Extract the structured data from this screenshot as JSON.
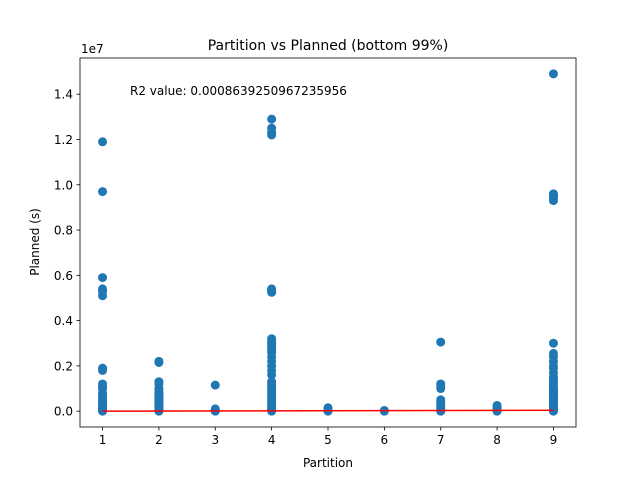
{
  "chart_data": {
    "type": "scatter",
    "title": "Partition vs Planned (bottom 99%)",
    "xlabel": "Partition",
    "ylabel": "Planned (s)",
    "y_offset_label": "1e7",
    "annotation": "R2 value: 0.0008639250967235956",
    "xlim": [
      0.6,
      9.4
    ],
    "ylim": [
      -0.07,
      1.56
    ],
    "x_ticks": [
      1,
      2,
      3,
      4,
      5,
      6,
      7,
      8,
      9
    ],
    "x_tick_labels": [
      "1",
      "2",
      "3",
      "4",
      "5",
      "6",
      "7",
      "8",
      "9"
    ],
    "y_ticks": [
      0.0,
      0.2,
      0.4,
      0.6,
      0.8,
      1.0,
      1.2,
      1.4
    ],
    "y_tick_labels": [
      "0.0",
      "0.2",
      "0.4",
      "0.6",
      "0.8",
      "1.0",
      "1.2",
      "1.4"
    ],
    "grid": false,
    "colors": {
      "points": "#1f77b4",
      "fit_line": "#ff0000"
    },
    "series": [
      {
        "values_unit": "x 1e7 s",
        "points": [
          [
            1,
            0
          ],
          [
            1,
            0.005
          ],
          [
            1,
            0.01
          ],
          [
            1,
            0.015
          ],
          [
            1,
            0.02
          ],
          [
            1,
            0.025
          ],
          [
            1,
            0.03
          ],
          [
            1,
            0.04
          ],
          [
            1,
            0.05
          ],
          [
            1,
            0.06
          ],
          [
            1,
            0.07
          ],
          [
            1,
            0.08
          ],
          [
            1,
            0.1
          ],
          [
            1,
            0.11
          ],
          [
            1,
            0.12
          ],
          [
            1,
            0.18
          ],
          [
            1,
            0.19
          ],
          [
            1,
            0.51
          ],
          [
            1,
            0.53
          ],
          [
            1,
            0.54
          ],
          [
            1,
            0.59
          ],
          [
            1,
            0.97
          ],
          [
            1,
            1.19
          ],
          [
            2,
            0
          ],
          [
            2,
            0.005
          ],
          [
            2,
            0.01
          ],
          [
            2,
            0.015
          ],
          [
            2,
            0.02
          ],
          [
            2,
            0.025
          ],
          [
            2,
            0.03
          ],
          [
            2,
            0.035
          ],
          [
            2,
            0.04
          ],
          [
            2,
            0.045
          ],
          [
            2,
            0.05
          ],
          [
            2,
            0.055
          ],
          [
            2,
            0.06
          ],
          [
            2,
            0.065
          ],
          [
            2,
            0.07
          ],
          [
            2,
            0.075
          ],
          [
            2,
            0.08
          ],
          [
            2,
            0.09
          ],
          [
            2,
            0.1
          ],
          [
            2,
            0.12
          ],
          [
            2,
            0.13
          ],
          [
            2,
            0.215
          ],
          [
            2,
            0.22
          ],
          [
            3,
            0
          ],
          [
            3,
            0.005
          ],
          [
            3,
            0.01
          ],
          [
            3,
            0.115
          ],
          [
            4,
            0
          ],
          [
            4,
            0.005
          ],
          [
            4,
            0.01
          ],
          [
            4,
            0.015
          ],
          [
            4,
            0.02
          ],
          [
            4,
            0.03
          ],
          [
            4,
            0.04
          ],
          [
            4,
            0.05
          ],
          [
            4,
            0.06
          ],
          [
            4,
            0.07
          ],
          [
            4,
            0.08
          ],
          [
            4,
            0.09
          ],
          [
            4,
            0.1
          ],
          [
            4,
            0.11
          ],
          [
            4,
            0.12
          ],
          [
            4,
            0.13
          ],
          [
            4,
            0.16
          ],
          [
            4,
            0.18
          ],
          [
            4,
            0.2
          ],
          [
            4,
            0.22
          ],
          [
            4,
            0.24
          ],
          [
            4,
            0.26
          ],
          [
            4,
            0.27
          ],
          [
            4,
            0.28
          ],
          [
            4,
            0.29
          ],
          [
            4,
            0.3
          ],
          [
            4,
            0.31
          ],
          [
            4,
            0.32
          ],
          [
            4,
            0.525
          ],
          [
            4,
            0.53
          ],
          [
            4,
            0.535
          ],
          [
            4,
            0.54
          ],
          [
            4,
            1.22
          ],
          [
            4,
            1.23
          ],
          [
            4,
            1.25
          ],
          [
            4,
            1.29
          ],
          [
            5,
            0
          ],
          [
            5,
            0.005
          ],
          [
            5,
            0.01
          ],
          [
            5,
            0.015
          ],
          [
            6,
            0
          ],
          [
            6,
            0.003
          ],
          [
            7,
            0
          ],
          [
            7,
            0.005
          ],
          [
            7,
            0.01
          ],
          [
            7,
            0.02
          ],
          [
            7,
            0.03
          ],
          [
            7,
            0.04
          ],
          [
            7,
            0.05
          ],
          [
            7,
            0.1
          ],
          [
            7,
            0.11
          ],
          [
            7,
            0.12
          ],
          [
            7,
            0.305
          ],
          [
            8,
            0
          ],
          [
            8,
            0.005
          ],
          [
            8,
            0.01
          ],
          [
            8,
            0.015
          ],
          [
            8,
            0.02
          ],
          [
            8,
            0.025
          ],
          [
            9,
            0
          ],
          [
            9,
            0.005
          ],
          [
            9,
            0.01
          ],
          [
            9,
            0.015
          ],
          [
            9,
            0.02
          ],
          [
            9,
            0.025
          ],
          [
            9,
            0.03
          ],
          [
            9,
            0.035
          ],
          [
            9,
            0.04
          ],
          [
            9,
            0.045
          ],
          [
            9,
            0.05
          ],
          [
            9,
            0.055
          ],
          [
            9,
            0.06
          ],
          [
            9,
            0.065
          ],
          [
            9,
            0.07
          ],
          [
            9,
            0.075
          ],
          [
            9,
            0.08
          ],
          [
            9,
            0.085
          ],
          [
            9,
            0.09
          ],
          [
            9,
            0.095
          ],
          [
            9,
            0.1
          ],
          [
            9,
            0.11
          ],
          [
            9,
            0.12
          ],
          [
            9,
            0.13
          ],
          [
            9,
            0.14
          ],
          [
            9,
            0.15
          ],
          [
            9,
            0.17
          ],
          [
            9,
            0.19
          ],
          [
            9,
            0.2
          ],
          [
            9,
            0.22
          ],
          [
            9,
            0.24
          ],
          [
            9,
            0.255
          ],
          [
            9,
            0.3
          ],
          [
            9,
            0.93
          ],
          [
            9,
            0.94
          ],
          [
            9,
            0.95
          ],
          [
            9,
            0.955
          ],
          [
            9,
            0.96
          ],
          [
            9,
            1.49
          ]
        ]
      }
    ],
    "fit_line": {
      "x": [
        1,
        9
      ],
      "y": [
        0.0,
        0.004
      ]
    }
  }
}
